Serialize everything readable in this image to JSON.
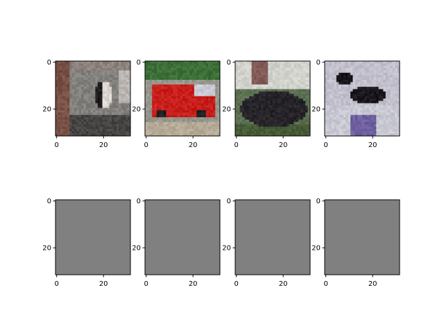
{
  "chart_data": {
    "type": "image-grid",
    "rows": 2,
    "cols": 4,
    "x_ticks": [
      0,
      20
    ],
    "y_ticks": [
      0,
      20
    ],
    "xlim": [
      -0.5,
      31.5
    ],
    "ylim": [
      31.5,
      -0.5
    ],
    "panels": [
      {
        "content": "cifar-image: cat in front of wall",
        "palette": "#6e6a66"
      },
      {
        "content": "cifar-image: red fire truck",
        "palette": "#c8322a"
      },
      {
        "content": "cifar-image: dark horse with rider",
        "palette": "#2c2b2d"
      },
      {
        "content": "cifar-image: dark dog on light background",
        "palette": "#8e8aa6"
      },
      {
        "content": "uniform-gray",
        "palette": "#808080"
      },
      {
        "content": "uniform-gray",
        "palette": "#808080"
      },
      {
        "content": "uniform-gray",
        "palette": "#808080"
      },
      {
        "content": "uniform-gray",
        "palette": "#808080"
      }
    ]
  }
}
